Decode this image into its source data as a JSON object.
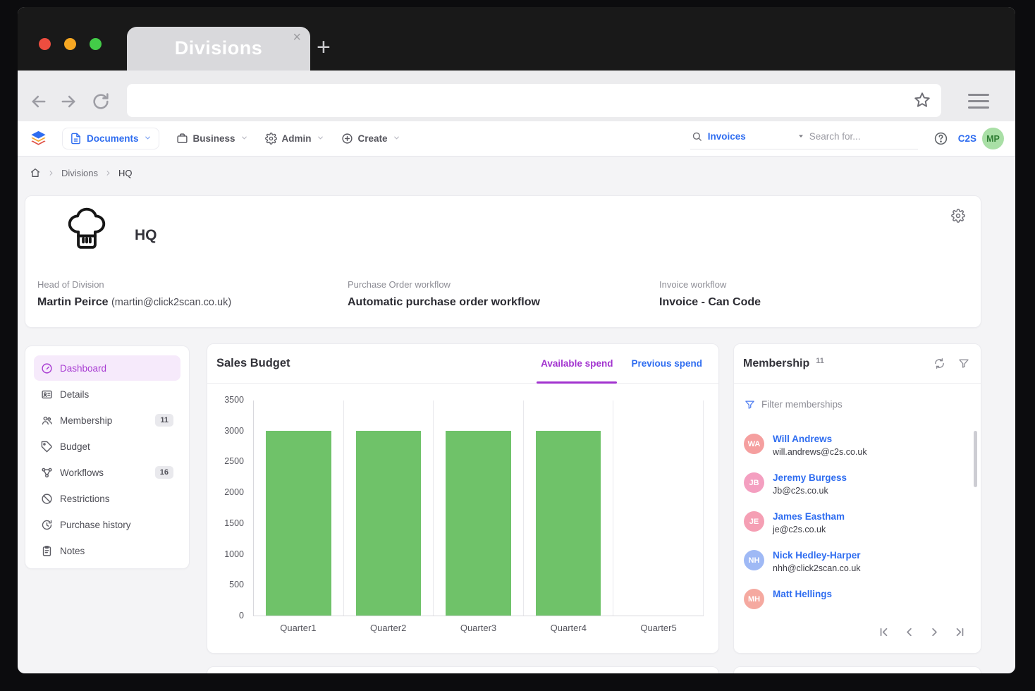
{
  "window": {
    "tab_title": "Divisions",
    "close_glyph": "×",
    "new_tab_glyph": "+",
    "url": ""
  },
  "app_bar": {
    "nav_items": [
      {
        "label": "Documents"
      },
      {
        "label": "Business"
      },
      {
        "label": "Admin"
      },
      {
        "label": "Create"
      }
    ],
    "search_scope": "Invoices",
    "search_placeholder": "Search for...",
    "org_label": "C2S",
    "user_initials": "MP"
  },
  "breadcrumb": {
    "items": [
      "Divisions",
      "HQ"
    ]
  },
  "division_card": {
    "title": "HQ",
    "fields": [
      {
        "label": "Head of Division",
        "value": "Martin Peirce",
        "detail": "(martin@click2scan.co.uk)"
      },
      {
        "label": "Purchase Order workflow",
        "value": "Automatic purchase order workflow"
      },
      {
        "label": "Invoice workflow",
        "value": "Invoice - Can Code"
      }
    ]
  },
  "sidebar": {
    "items": [
      {
        "label": "Dashboard"
      },
      {
        "label": "Details"
      },
      {
        "label": "Membership",
        "badge": "11"
      },
      {
        "label": "Budget"
      },
      {
        "label": "Workflows",
        "badge": "16"
      },
      {
        "label": "Restrictions"
      },
      {
        "label": "Purchase history"
      },
      {
        "label": "Notes"
      }
    ]
  },
  "chart_data": {
    "type": "bar",
    "title": "Sales Budget",
    "tabs": [
      "Available spend",
      "Previous spend"
    ],
    "active_tab": "Available spend",
    "categories": [
      "Quarter1",
      "Quarter2",
      "Quarter3",
      "Quarter4",
      "Quarter5"
    ],
    "values": [
      3000,
      3000,
      3000,
      3000,
      0
    ],
    "ylim": [
      0,
      3500
    ],
    "yticks": [
      0,
      500,
      1000,
      1500,
      2000,
      2500,
      3000,
      3500
    ],
    "bar_color": "#6fc269",
    "grid": "vertical",
    "legend": "none"
  },
  "membership_card": {
    "title": "Membership",
    "count": "11",
    "filter_placeholder": "Filter memberships",
    "members": [
      {
        "initials": "WA",
        "name": "Will Andrews",
        "email": "will.andrews@c2s.co.uk",
        "color": "#f59f9f"
      },
      {
        "initials": "JB",
        "name": "Jeremy Burgess",
        "email": "Jb@c2s.co.uk",
        "color": "#f49fc0"
      },
      {
        "initials": "JE",
        "name": "James Eastham",
        "email": "je@c2s.co.uk",
        "color": "#f59fb4"
      },
      {
        "initials": "NH",
        "name": "Nick Hedley-Harper",
        "email": "nhh@click2scan.co.uk",
        "color": "#9fb9f5"
      },
      {
        "initials": "MH",
        "name": "Matt Hellings",
        "email": "",
        "color": "#f5a9a0"
      }
    ]
  }
}
